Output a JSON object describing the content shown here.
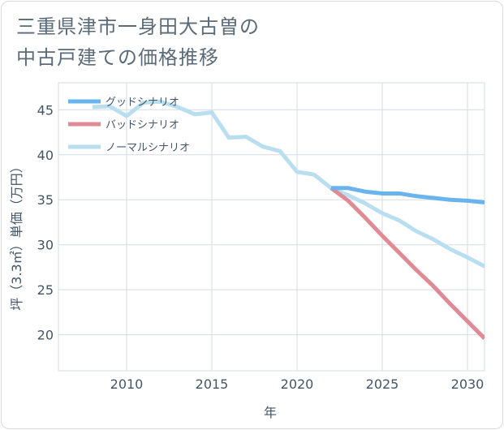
{
  "chart_data": {
    "type": "line",
    "title_line1": "三重県津市一身田大古曽の",
    "title_line2": "中古戸建ての価格推移",
    "xlabel": "年",
    "ylabel": "坪（3.3㎡）単価（万円）",
    "xlim": [
      2006,
      2031
    ],
    "ylim": [
      16,
      48
    ],
    "xticks": [
      2010,
      2015,
      2020,
      2025,
      2030
    ],
    "yticks": [
      20,
      25,
      30,
      35,
      40,
      45
    ],
    "grid": true,
    "legend_position": "top-left",
    "series": [
      {
        "name": "グッドシナリオ",
        "color": "#6ab4ee",
        "x": [
          2022,
          2023,
          2024,
          2025,
          2026,
          2027,
          2028,
          2029,
          2030,
          2031
        ],
        "y": [
          36.3,
          36.3,
          35.9,
          35.7,
          35.7,
          35.4,
          35.2,
          35.0,
          34.9,
          34.7
        ]
      },
      {
        "name": "バッドシナリオ",
        "color": "#e08a96",
        "x": [
          2022,
          2023,
          2024,
          2025,
          2026,
          2027,
          2028,
          2029,
          2030,
          2031
        ],
        "y": [
          36.3,
          34.9,
          33.0,
          31.0,
          29.1,
          27.2,
          25.4,
          23.4,
          21.5,
          19.6
        ]
      },
      {
        "name": "ノーマルシナリオ",
        "color": "#b9deef",
        "x": [
          2008,
          2009,
          2010,
          2011,
          2012,
          2013,
          2014,
          2015,
          2016,
          2017,
          2018,
          2019,
          2020,
          2021,
          2022,
          2023,
          2024,
          2025,
          2026,
          2027,
          2028,
          2029,
          2030,
          2031
        ],
        "y": [
          45.3,
          45.4,
          44.3,
          45.8,
          45.9,
          45.3,
          44.5,
          44.7,
          41.9,
          42.0,
          40.9,
          40.4,
          38.1,
          37.8,
          36.3,
          35.5,
          34.6,
          33.5,
          32.7,
          31.5,
          30.6,
          29.5,
          28.6,
          27.6
        ]
      }
    ]
  }
}
